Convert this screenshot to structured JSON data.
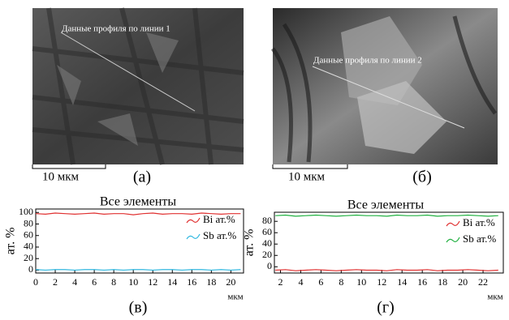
{
  "panels": [
    {
      "annotation": "Данные профиля по линии 1",
      "scale": "10 мкм",
      "label": "(а)"
    },
    {
      "annotation": "Данные профиля по линии 2",
      "scale": "10 мкм",
      "label": "(б)"
    }
  ],
  "chart_data": [
    {
      "type": "line",
      "title": "Все элементы",
      "y_label": "ат. %",
      "x_label": "мкм",
      "panel_label": "(в)",
      "legend": "upper right",
      "x": [
        0,
        1,
        2,
        3,
        4,
        5,
        6,
        7,
        8,
        9,
        10,
        11,
        12,
        13,
        14,
        15,
        16,
        17,
        18,
        19,
        20,
        21
      ],
      "series": [
        {
          "name": "Bi ат.%",
          "color": "#e03030",
          "values": [
            98,
            97,
            99,
            98,
            97,
            98,
            99,
            97,
            98,
            98,
            96,
            98,
            99,
            97,
            98,
            98,
            97,
            99,
            98,
            97,
            98,
            98
          ]
        },
        {
          "name": "Sb ат.%",
          "color": "#30b8e0",
          "values": [
            1,
            0,
            1,
            1,
            0,
            1,
            1,
            0,
            1,
            0,
            1,
            1,
            0,
            1,
            1,
            0,
            1,
            1,
            0,
            1,
            0,
            1
          ]
        }
      ],
      "xlim": [
        0,
        21.3
      ],
      "xticks": [
        0,
        2,
        4,
        6,
        8,
        10,
        12,
        14,
        16,
        18,
        20
      ],
      "ylim": [
        -5,
        106
      ],
      "yticks": [
        0,
        20,
        40,
        60,
        80,
        100
      ]
    },
    {
      "type": "line",
      "title": "Все элементы",
      "y_label": "ат. %",
      "x_label": "мкм",
      "panel_label": "(г)",
      "legend": "upper right",
      "x": [
        1.5,
        2.5,
        3.5,
        4.5,
        5.5,
        6.5,
        7.5,
        8.5,
        9.5,
        10.5,
        11.5,
        12.5,
        13.5,
        14.5,
        15.5,
        16.5,
        17.5,
        18.5,
        19.5,
        20.5,
        21.5,
        22.5,
        23.5
      ],
      "series": [
        {
          "name": "Bi ат.%",
          "color": "#e03030",
          "values": [
            -6,
            -5,
            -7,
            -6,
            -5,
            -6,
            -7,
            -6,
            -5,
            -6,
            -6,
            -7,
            -5,
            -6,
            -6,
            -5,
            -7,
            -6,
            -6,
            -5,
            -6,
            -7,
            -6
          ]
        },
        {
          "name": "Sb ат.%",
          "color": "#20b040",
          "values": [
            90,
            91,
            89,
            90,
            91,
            90,
            89,
            90,
            91,
            90,
            90,
            89,
            91,
            90,
            90,
            91,
            89,
            90,
            90,
            91,
            90,
            89,
            90
          ]
        }
      ],
      "xlim": [
        1.4,
        24
      ],
      "xticks": [
        2,
        4,
        6,
        8,
        10,
        12,
        14,
        16,
        18,
        20,
        22
      ],
      "ylim": [
        -11,
        96
      ],
      "yticks": [
        0,
        20,
        40,
        60,
        80
      ]
    }
  ]
}
